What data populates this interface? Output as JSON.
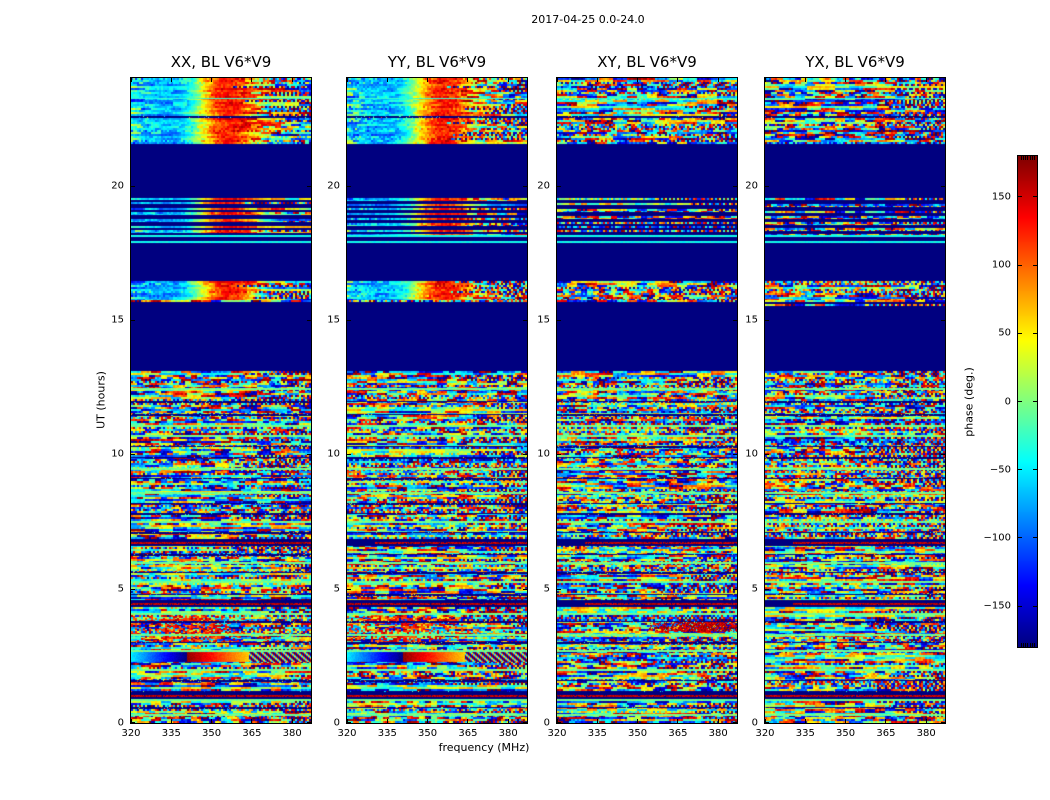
{
  "figure": {
    "title": "2017-04-25 0.0-24.0",
    "background": "#ffffff"
  },
  "colors": {
    "flagged": "#000080",
    "frame": "#000000",
    "background": "#ffffff"
  },
  "chart_data": {
    "type": "heatmap",
    "title": "2017-04-25 0.0-24.0",
    "xlabel": "frequency (MHz)",
    "ylabel": "UT (hours)",
    "x_range": [
      320,
      387
    ],
    "y_range": [
      0,
      24
    ],
    "x_ticks": [
      320,
      335,
      350,
      365,
      380
    ],
    "y_ticks": [
      0,
      5,
      10,
      15,
      20
    ],
    "grid": false,
    "colormap": "jet",
    "colorbar": {
      "label": "phase (deg.)",
      "range": [
        -180,
        180
      ],
      "ticks": [
        150,
        100,
        50,
        0,
        -50,
        -100,
        -150
      ],
      "position": "right"
    },
    "panels": [
      {
        "title": "XX, BL V6*V9",
        "phase_blob": true,
        "gradient_stripe": true,
        "red_streak": false,
        "seed": 101
      },
      {
        "title": "YY, BL V6*V9",
        "phase_blob": true,
        "gradient_stripe": true,
        "red_streak": false,
        "seed": 202
      },
      {
        "title": "XY, BL V6*V9",
        "phase_blob": false,
        "gradient_stripe": false,
        "red_streak": true,
        "seed": 303
      },
      {
        "title": "YX, BL V6*V9",
        "phase_blob": false,
        "gradient_stripe": false,
        "red_streak": false,
        "seed": 404
      }
    ],
    "time_bands": [
      {
        "from_hour": 24.0,
        "to_hour": 21.55,
        "type": "noise",
        "blob": true,
        "moire": true,
        "bright_line_hour": 23.25,
        "dark_line_hour": 22.6
      },
      {
        "from_hour": 21.55,
        "to_hour": 19.55,
        "type": "flagged"
      },
      {
        "from_hour": 19.55,
        "to_hour": 18.15,
        "type": "striped",
        "blob": true
      },
      {
        "from_hour": 18.15,
        "to_hour": 17.85,
        "type": "cyan_lines"
      },
      {
        "from_hour": 17.85,
        "to_hour": 16.45,
        "type": "flagged"
      },
      {
        "from_hour": 16.45,
        "to_hour": 15.75,
        "type": "noise",
        "blob": true
      },
      {
        "from_hour": 15.75,
        "to_hour": 15.5,
        "type": "striped"
      },
      {
        "from_hour": 15.5,
        "to_hour": 13.1,
        "type": "flagged"
      },
      {
        "from_hour": 13.1,
        "to_hour": 0.0,
        "type": "noise",
        "features": true
      }
    ],
    "features": {
      "green_line_hours": [
        12.45,
        11.1,
        10.7,
        9.5,
        8.6,
        7.5,
        6.0,
        5.3,
        4.1,
        3.3,
        2.7,
        2.0,
        0.9,
        0.35
      ],
      "dark_line_hours": [
        12.0,
        11.5,
        10.3,
        9.9,
        9.1,
        8.2,
        7.8,
        7.1,
        6.3,
        5.6,
        4.8,
        3.8,
        3.0,
        1.6,
        1.2,
        0.6
      ],
      "flag_bands_with_red_line_hours": [
        6.75,
        4.45,
        1.05
      ],
      "gradient_stripe_hours": [
        2.65,
        2.28
      ],
      "red_streak_hours": [
        3.75,
        3.4
      ],
      "low_orange_blob_hours": [
        4.0,
        3.0
      ]
    }
  }
}
